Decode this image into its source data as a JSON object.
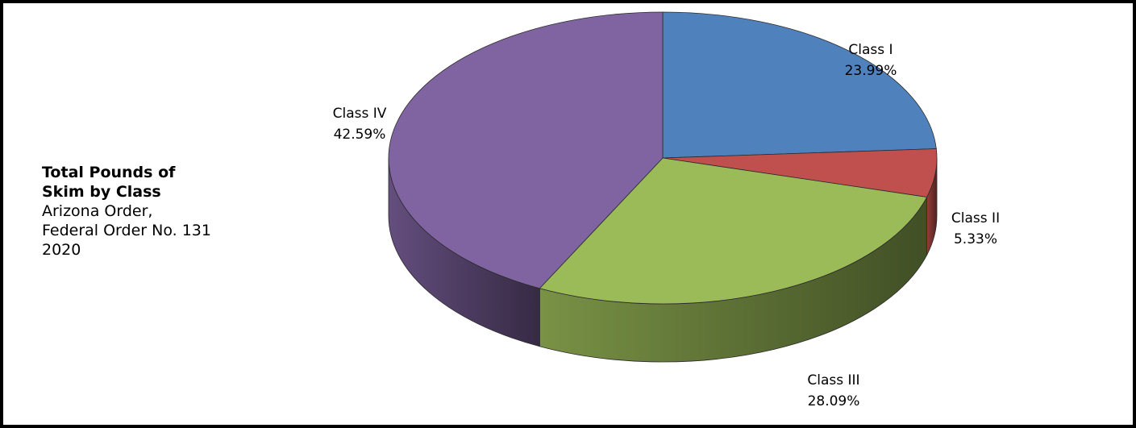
{
  "chart_data": {
    "type": "pie",
    "title": "Total Pounds of Skim by Class",
    "subtitle_lines": [
      "Arizona Order,",
      "Federal Order No. 131",
      "2020"
    ],
    "categories": [
      "Class I",
      "Class II",
      "Class III",
      "Class IV"
    ],
    "values": [
      23.99,
      5.33,
      28.09,
      42.59
    ],
    "value_labels": [
      "23.99%",
      "5.33%",
      "28.09%",
      "42.59%"
    ],
    "unit": "%",
    "style": "3d-pie",
    "legend": "none",
    "colors": [
      "#4F81BD",
      "#C0504D",
      "#9BBB59",
      "#8064A2"
    ]
  }
}
